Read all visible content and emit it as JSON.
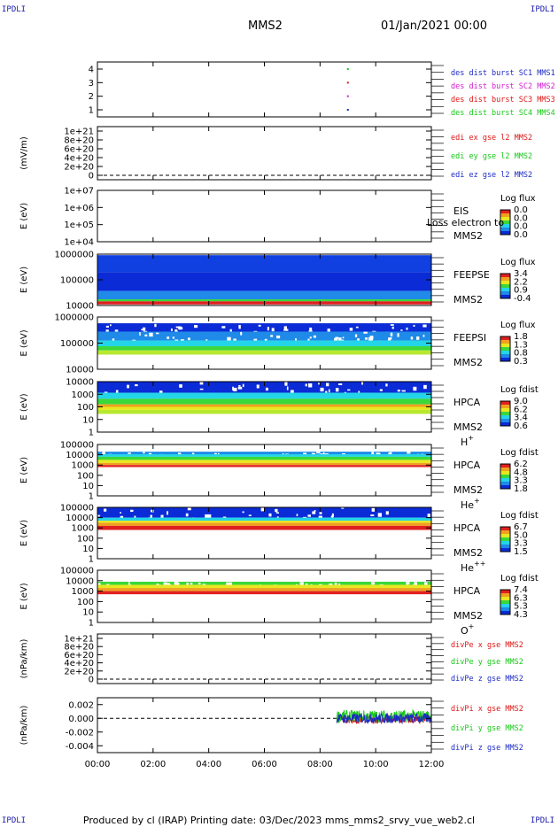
{
  "header": {
    "logo": "IPDLI",
    "title": "MMS2",
    "date": "01/Jan/2021 00:00"
  },
  "footer": {
    "text": "Produced by cl (IRAP)   Printing date: 03/Dec/2023   mms_mms2_srvy_vue_web2.cl"
  },
  "colors": {
    "blue": "#1c2bc4",
    "magenta": "#d21cd2",
    "red": "#dd1616",
    "green": "#18c818",
    "colorbar": [
      "#0a2bd6",
      "#1f8ae8",
      "#24d4e8",
      "#3ad83a",
      "#e8e820",
      "#f0a020",
      "#e02020"
    ]
  },
  "chart_data": [
    {
      "id": "p1",
      "type": "scatter",
      "yticks": [
        "1",
        "2",
        "3",
        "4"
      ],
      "ylabel": "",
      "legend": [
        {
          "text": "des dist burst SC1 MMS1",
          "color": "#1c2bc4"
        },
        {
          "text": "des dist burst SC2 MMS2",
          "color": "#d21cd2"
        },
        {
          "text": "des dist burst SC3 MMS3",
          "color": "#dd1616"
        },
        {
          "text": "des dist burst SC4 MMS4",
          "color": "#18c818"
        }
      ],
      "points": [
        {
          "t": 9.0,
          "y": 1
        },
        {
          "t": 9.0,
          "y": 2
        },
        {
          "t": 9.0,
          "y": 3
        },
        {
          "t": 9.0,
          "y": 4
        }
      ]
    },
    {
      "id": "p2",
      "type": "line",
      "yticks": [
        "0",
        "2e+20",
        "4e+20",
        "6e+20",
        "8e+20",
        "1e+21"
      ],
      "ylabel": "(mV/m)",
      "legend": [
        {
          "text": "edi ex gse l2 MMS2",
          "color": "#dd1616"
        },
        {
          "text": "edi ey gse l2 MMS2",
          "color": "#18c818"
        },
        {
          "text": "edi ez gse l2 MMS2",
          "color": "#1c2bc4"
        }
      ],
      "zero_line": true
    },
    {
      "id": "p3",
      "type": "heatmap",
      "yticks": [
        "1e+04",
        "1e+05",
        "1e+06",
        "1e+07"
      ],
      "ylabel": "E (eV)",
      "labels": [
        "EIS",
        "MMS2"
      ],
      "overlay": "Loss electron to",
      "cbar_title": "Log flux",
      "cbar_values": [
        "0.0",
        "0.0",
        "0.0",
        "0.0"
      ],
      "bands": []
    },
    {
      "id": "p4",
      "type": "heatmap",
      "yticks": [
        "10000",
        "100000",
        "1000000"
      ],
      "ylabel": "E (eV)",
      "labels": [
        "FEEPSE",
        "MMS2"
      ],
      "cbar_title": "Log flux",
      "cbar_values": [
        "3.4",
        "2.2",
        "0.9",
        "-0.4"
      ],
      "bands": [
        {
          "from": 0.02,
          "to": 0.35,
          "color": "#1040e0"
        },
        {
          "from": 0.35,
          "to": 0.72,
          "color": "#0a2bd6"
        },
        {
          "from": 0.72,
          "to": 0.88,
          "color": "#1f8ae8"
        },
        {
          "from": 0.88,
          "to": 0.92,
          "color": "#3ad83a"
        },
        {
          "from": 0.92,
          "to": 0.98,
          "color": "#e02020"
        }
      ]
    },
    {
      "id": "p5",
      "type": "heatmap",
      "yticks": [
        "10000",
        "100000",
        "1000000"
      ],
      "ylabel": "E (eV)",
      "labels": [
        "FEEPSI",
        "MMS2"
      ],
      "cbar_title": "Log flux",
      "cbar_values": [
        "1.8",
        "1.3",
        "0.8",
        "0.3"
      ],
      "bands": [
        {
          "from": 0.12,
          "to": 0.28,
          "color": "#0a2bd6",
          "speckle": true
        },
        {
          "from": 0.28,
          "to": 0.45,
          "color": "#1f8ae8",
          "speckle": true
        },
        {
          "from": 0.45,
          "to": 0.56,
          "color": "#24d4e8"
        },
        {
          "from": 0.56,
          "to": 0.64,
          "color": "#3ad83a"
        },
        {
          "from": 0.64,
          "to": 0.72,
          "color": "#b8e830"
        }
      ]
    },
    {
      "id": "p6",
      "type": "heatmap",
      "yticks": [
        "1",
        "10",
        "100",
        "1000",
        "10000"
      ],
      "ylabel": "E (eV)",
      "labels": [
        "HPCA",
        "MMS2",
        "H+"
      ],
      "cbar_title": "Log fdist",
      "cbar_values": [
        "9.0",
        "6.2",
        "3.4",
        "0.6"
      ],
      "bands": [
        {
          "from": 0.0,
          "to": 0.22,
          "color": "#0a2bd6",
          "speckle": true
        },
        {
          "from": 0.22,
          "to": 0.34,
          "color": "#24d4e8"
        },
        {
          "from": 0.34,
          "to": 0.45,
          "color": "#3ad83a"
        },
        {
          "from": 0.45,
          "to": 0.5,
          "color": "#f0a020"
        },
        {
          "from": 0.5,
          "to": 0.56,
          "color": "#e8e820"
        },
        {
          "from": 0.56,
          "to": 0.64,
          "color": "#b8e830"
        }
      ]
    },
    {
      "id": "p7",
      "type": "heatmap",
      "yticks": [
        "1",
        "10",
        "100",
        "1000",
        "10000",
        "100000"
      ],
      "ylabel": "E (eV)",
      "labels": [
        "HPCA",
        "MMS2",
        "He+"
      ],
      "cbar_title": "Log fdist",
      "cbar_values": [
        "6.2",
        "4.8",
        "3.3",
        "1.8"
      ],
      "bands": [
        {
          "from": 0.14,
          "to": 0.19,
          "color": "#1f8ae8",
          "speckle": true
        },
        {
          "from": 0.19,
          "to": 0.24,
          "color": "#24d4e8"
        },
        {
          "from": 0.24,
          "to": 0.3,
          "color": "#3ad83a"
        },
        {
          "from": 0.3,
          "to": 0.36,
          "color": "#e8e820"
        },
        {
          "from": 0.36,
          "to": 0.4,
          "color": "#f0a020"
        },
        {
          "from": 0.4,
          "to": 0.44,
          "color": "#e02020"
        }
      ]
    },
    {
      "id": "p8",
      "type": "heatmap",
      "yticks": [
        "1",
        "10",
        "100",
        "1000",
        "10000",
        "100000"
      ],
      "ylabel": "E (eV)",
      "labels": [
        "HPCA",
        "MMS2",
        "He++"
      ],
      "cbar_title": "Log fdist",
      "cbar_values": [
        "6.7",
        "5.0",
        "3.3",
        "1.5"
      ],
      "bands": [
        {
          "from": 0.0,
          "to": 0.2,
          "color": "#0a2bd6",
          "speckle": true
        },
        {
          "from": 0.2,
          "to": 0.26,
          "color": "#24d4e8"
        },
        {
          "from": 0.26,
          "to": 0.3,
          "color": "#e8e820"
        },
        {
          "from": 0.3,
          "to": 0.36,
          "color": "#f0a020"
        },
        {
          "from": 0.36,
          "to": 0.44,
          "color": "#e02020"
        }
      ]
    },
    {
      "id": "p9",
      "type": "heatmap",
      "yticks": [
        "1",
        "10",
        "100",
        "1000",
        "10000",
        "100000"
      ],
      "ylabel": "E (eV)",
      "labels": [
        "HPCA",
        "MMS2",
        "O+"
      ],
      "cbar_title": "Log fdist",
      "cbar_values": [
        "7.4",
        "6.3",
        "5.3",
        "4.3"
      ],
      "bands": [
        {
          "from": 0.22,
          "to": 0.28,
          "color": "#3ad83a",
          "speckle": true
        },
        {
          "from": 0.28,
          "to": 0.34,
          "color": "#e8e820"
        },
        {
          "from": 0.34,
          "to": 0.4,
          "color": "#f0a020"
        },
        {
          "from": 0.4,
          "to": 0.46,
          "color": "#e02020"
        }
      ]
    },
    {
      "id": "p10",
      "type": "line",
      "yticks": [
        "0",
        "2e+20",
        "4e+20",
        "6e+20",
        "8e+20",
        "1e+21"
      ],
      "ylabel": "(nPa/km)",
      "legend": [
        {
          "text": "divPe x gse MMS2",
          "color": "#dd1616"
        },
        {
          "text": "divPe y gse MMS2",
          "color": "#18c818"
        },
        {
          "text": "divPe z gse MMS2",
          "color": "#1c2bc4"
        }
      ],
      "zero_line": true
    },
    {
      "id": "p11",
      "type": "line",
      "yticks": [
        "-0.004",
        "-0.002",
        "0.000",
        "0.002"
      ],
      "ylabel": "(nPa/km)",
      "ylim": [
        -0.005,
        0.003
      ],
      "legend": [
        {
          "text": "divPi x gse MMS2",
          "color": "#dd1616"
        },
        {
          "text": "divPi y gse MMS2",
          "color": "#18c818"
        },
        {
          "text": "divPi z gse MMS2",
          "color": "#1c2bc4"
        }
      ],
      "zero_line": true,
      "series": [
        {
          "name": "divPi x gse MMS2",
          "color": "#dd1616",
          "t_start": 8.6,
          "t_end": 12.0,
          "mean": -0.0002,
          "spread": 0.0006
        },
        {
          "name": "divPi y gse MMS2",
          "color": "#18c818",
          "t_start": 8.6,
          "t_end": 12.0,
          "mean": 0.0003,
          "spread": 0.0009
        },
        {
          "name": "divPi z gse MMS2",
          "color": "#1c2bc4",
          "t_start": 8.6,
          "t_end": 12.0,
          "mean": 0.0,
          "spread": 0.0007
        }
      ]
    }
  ],
  "xaxis": {
    "ticks": [
      "00:00",
      "02:00",
      "04:00",
      "06:00",
      "08:00",
      "10:00",
      "12:00"
    ],
    "range_hours": [
      0,
      12
    ]
  }
}
